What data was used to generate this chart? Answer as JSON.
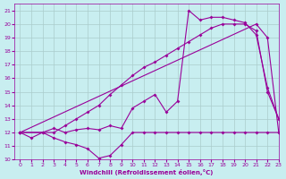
{
  "xlabel": "Windchill (Refroidissement éolien,°C)",
  "bg_color": "#c8eef0",
  "line_color": "#990099",
  "grid_color": "#aacccc",
  "xlim": [
    -0.5,
    23
  ],
  "ylim": [
    10,
    21.5
  ],
  "xticks": [
    0,
    1,
    2,
    3,
    4,
    5,
    6,
    7,
    8,
    9,
    10,
    11,
    12,
    13,
    14,
    15,
    16,
    17,
    18,
    19,
    20,
    21,
    22,
    23
  ],
  "yticks": [
    10,
    11,
    12,
    13,
    14,
    15,
    16,
    17,
    18,
    19,
    20,
    21
  ],
  "lines": [
    {
      "x": [
        0,
        1,
        2,
        3,
        4,
        5,
        6,
        7,
        8,
        9,
        10,
        11,
        12,
        13,
        14,
        15,
        16,
        17,
        18,
        19,
        20,
        21,
        22,
        23
      ],
      "y": [
        12,
        11.6,
        12,
        11.6,
        11.3,
        11.1,
        10.8,
        10.1,
        10.3,
        11.1,
        12,
        12,
        12,
        12,
        12,
        12,
        12,
        12,
        12,
        12,
        12,
        12,
        12,
        12
      ]
    },
    {
      "x": [
        0,
        21,
        22,
        23
      ],
      "y": [
        12,
        20,
        19,
        12
      ]
    },
    {
      "x": [
        0,
        3,
        4,
        5,
        6,
        7,
        8,
        9,
        10,
        11,
        12,
        13,
        14,
        15,
        16,
        17,
        18,
        19,
        20,
        21,
        22,
        23
      ],
      "y": [
        12,
        12,
        12.5,
        13,
        13.5,
        14,
        14.8,
        15.5,
        16.2,
        16.8,
        17.2,
        17.7,
        18.2,
        18.7,
        19.2,
        19.7,
        20,
        20,
        20,
        19.5,
        15,
        13
      ]
    },
    {
      "x": [
        0,
        2,
        3,
        4,
        5,
        6,
        7,
        8,
        9,
        10,
        11,
        12,
        13,
        14,
        15,
        16,
        17,
        18,
        19,
        20,
        21,
        22,
        23
      ],
      "y": [
        12,
        12,
        12.3,
        12,
        12.2,
        12.3,
        12.2,
        12.5,
        12.3,
        13.8,
        14.3,
        14.8,
        13.5,
        14.3,
        21,
        20.3,
        20.5,
        20.5,
        20.3,
        20.1,
        19.2,
        15.3,
        13
      ]
    }
  ]
}
